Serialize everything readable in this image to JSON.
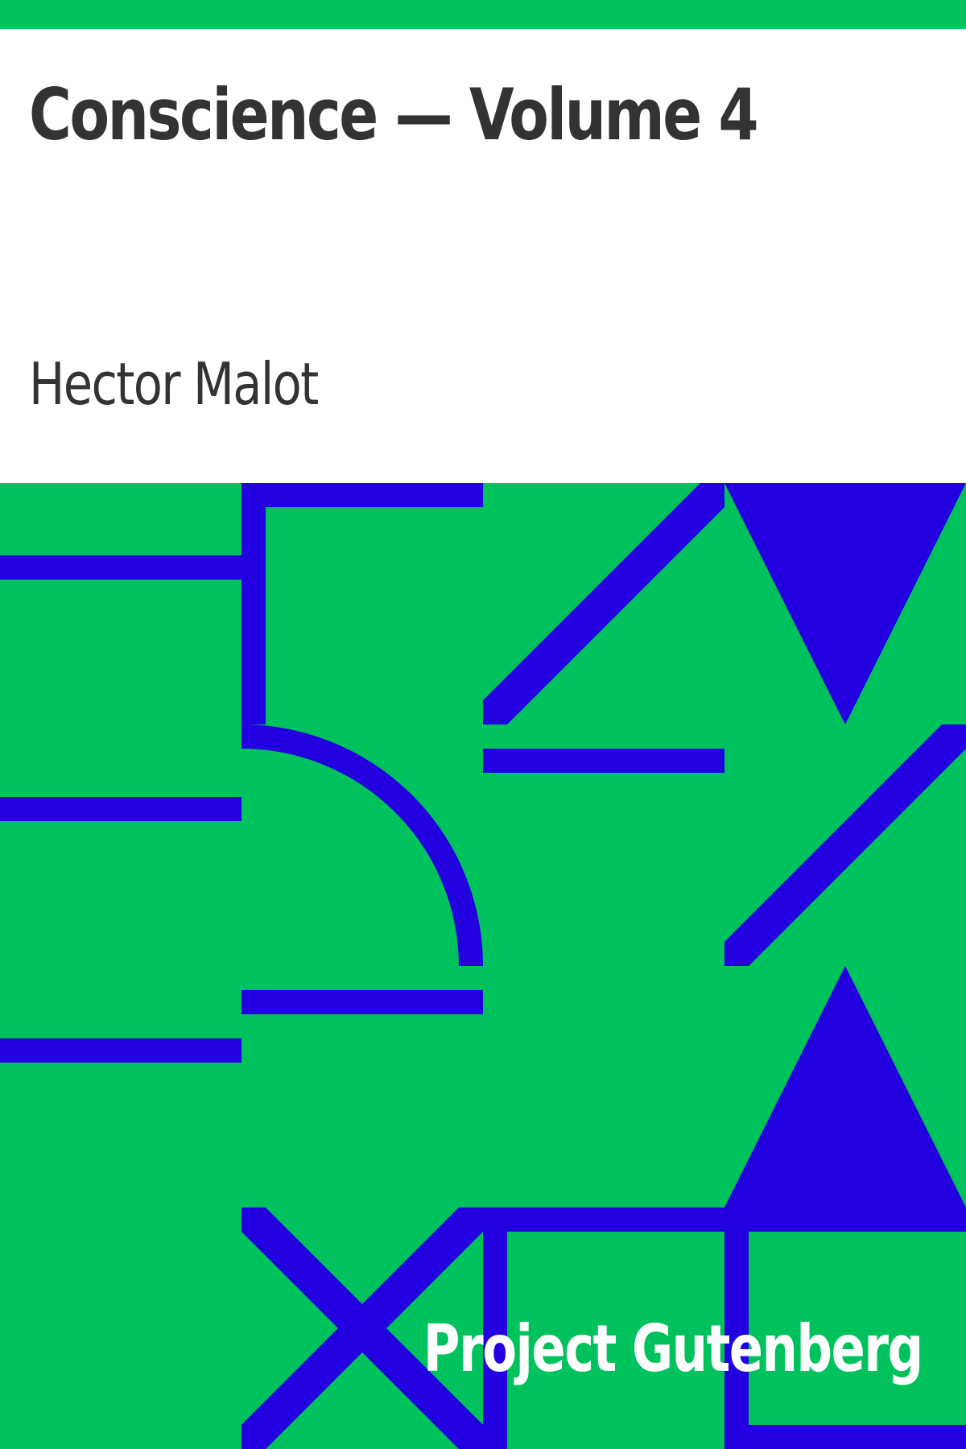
{
  "book": {
    "title": "Conscience — Volume 4",
    "author": "Hector Malot",
    "publisher": "Project Gutenberg"
  },
  "colors": {
    "background": "#ffffff",
    "accent": "#00c25c",
    "pattern": "#2200e0",
    "title_text": "#333333",
    "publisher_text": "#ffffff"
  }
}
